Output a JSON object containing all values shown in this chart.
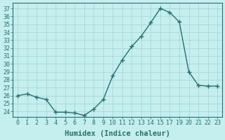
{
  "x_indices": [
    0,
    1,
    2,
    3,
    4,
    5,
    6,
    7,
    8,
    9,
    10,
    11,
    12,
    13,
    14,
    15,
    16,
    17,
    18,
    19,
    20,
    21
  ],
  "x_labels": [
    "0",
    "1",
    "2",
    "3",
    "4",
    "5",
    "6",
    "7",
    "8",
    "9",
    "10",
    "11",
    "12",
    "13",
    "14",
    "15",
    "17",
    "19",
    "20",
    "21",
    "22",
    "23"
  ],
  "y": [
    26.0,
    26.2,
    25.8,
    25.5,
    23.9,
    23.9,
    23.8,
    23.5,
    24.3,
    25.5,
    28.5,
    30.5,
    32.2,
    33.5,
    35.2,
    37.0,
    36.5,
    35.3,
    29.0,
    27.3,
    27.2,
    27.2
  ],
  "yticks": [
    24,
    25,
    26,
    27,
    28,
    29,
    30,
    31,
    32,
    33,
    34,
    35,
    36,
    37
  ],
  "ylim": [
    23.3,
    37.7
  ],
  "xlim": [
    -0.5,
    21.5
  ],
  "xlabel": "Humidex (Indice chaleur)",
  "line_color": "#2a6f6f",
  "marker": "+",
  "marker_size": 4,
  "marker_lw": 1.0,
  "bg_color": "#c5eeee",
  "grid_color": "#a8d8d8",
  "label_fontsize": 7.5,
  "tick_fontsize": 6.0,
  "linewidth": 1.0
}
